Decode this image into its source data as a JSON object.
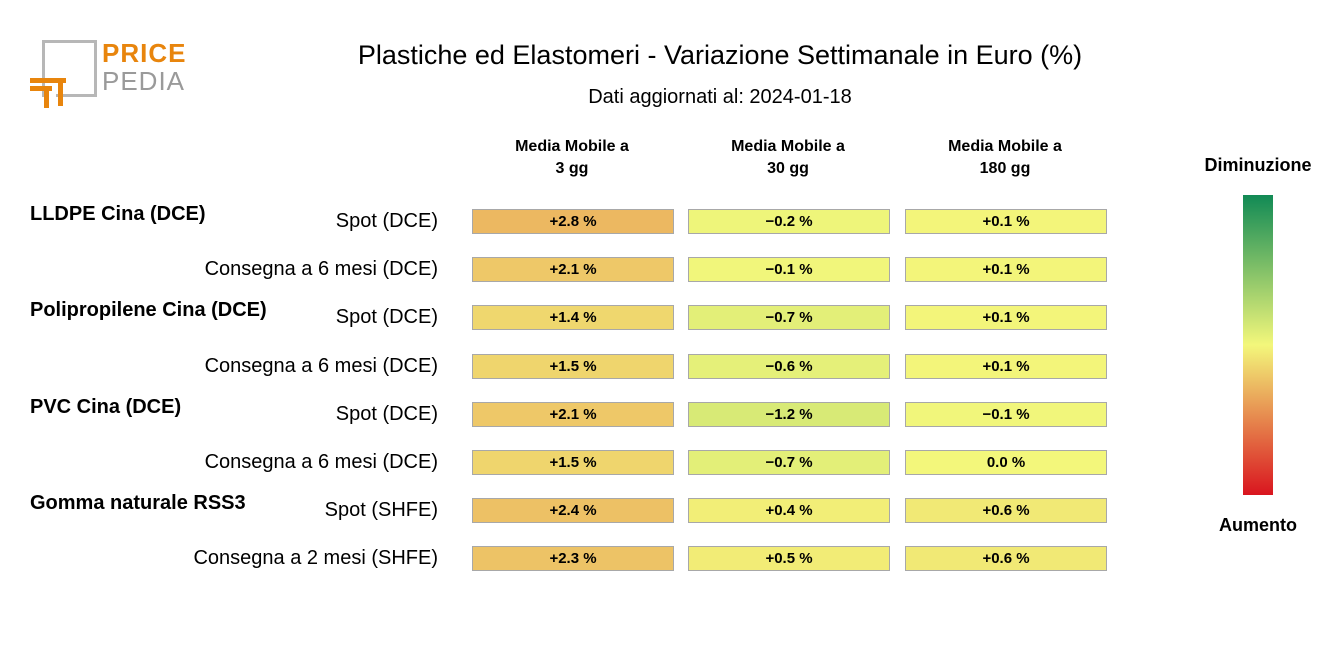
{
  "logo": {
    "line1": "PRICE",
    "line2": "PEDIA"
  },
  "title": "Plastiche ed Elastomeri - Variazione Settimanale in Euro (%)",
  "subtitle": "Dati aggiornati al: 2024-01-18",
  "legend": {
    "top": "Diminuzione",
    "bottom": "Aumento",
    "colors": {
      "top": "#118a55",
      "mid": "#f3f77b",
      "bottom": "#d9151f"
    }
  },
  "chart_data": {
    "type": "table",
    "columns": [
      {
        "line1": "Media Mobile a",
        "line2": "3 gg"
      },
      {
        "line1": "Media Mobile a",
        "line2": "30 gg"
      },
      {
        "line1": "Media Mobile a",
        "line2": "180 gg"
      }
    ],
    "rows": [
      {
        "group": "LLDPE Cina (DCE)",
        "label": "Spot (DCE)",
        "values": [
          2.8,
          -0.2,
          0.1
        ],
        "display": [
          "+2.8 %",
          "−0.2 %",
          "+0.1 %"
        ]
      },
      {
        "group": "",
        "label": "Consegna a 6 mesi (DCE)",
        "values": [
          2.1,
          -0.1,
          0.1
        ],
        "display": [
          "+2.1 %",
          "−0.1 %",
          "+0.1 %"
        ]
      },
      {
        "group": "Polipropilene Cina (DCE)",
        "label": "Spot (DCE)",
        "values": [
          1.4,
          -0.7,
          0.1
        ],
        "display": [
          "+1.4 %",
          "−0.7 %",
          "+0.1 %"
        ]
      },
      {
        "group": "",
        "label": "Consegna a 6 mesi (DCE)",
        "values": [
          1.5,
          -0.6,
          0.1
        ],
        "display": [
          "+1.5 %",
          "−0.6 %",
          "+0.1 %"
        ]
      },
      {
        "group": "PVC Cina (DCE)",
        "label": "Spot (DCE)",
        "values": [
          2.1,
          -1.2,
          -0.1
        ],
        "display": [
          "+2.1 %",
          "−1.2 %",
          "−0.1 %"
        ]
      },
      {
        "group": "",
        "label": "Consegna a 6 mesi (DCE)",
        "values": [
          1.5,
          -0.7,
          0.0
        ],
        "display": [
          "+1.5 %",
          "−0.7 %",
          "0.0 %"
        ]
      },
      {
        "group": "Gomma naturale RSS3",
        "label": "Spot (SHFE)",
        "values": [
          2.4,
          0.4,
          0.6
        ],
        "display": [
          "+2.4 %",
          "+0.4 %",
          "+0.6 %"
        ]
      },
      {
        "group": "",
        "label": "Consegna a 2 mesi (SHFE)",
        "values": [
          2.3,
          0.5,
          0.6
        ],
        "display": [
          "+2.3 %",
          "+0.5 %",
          "+0.6 %"
        ]
      }
    ]
  }
}
